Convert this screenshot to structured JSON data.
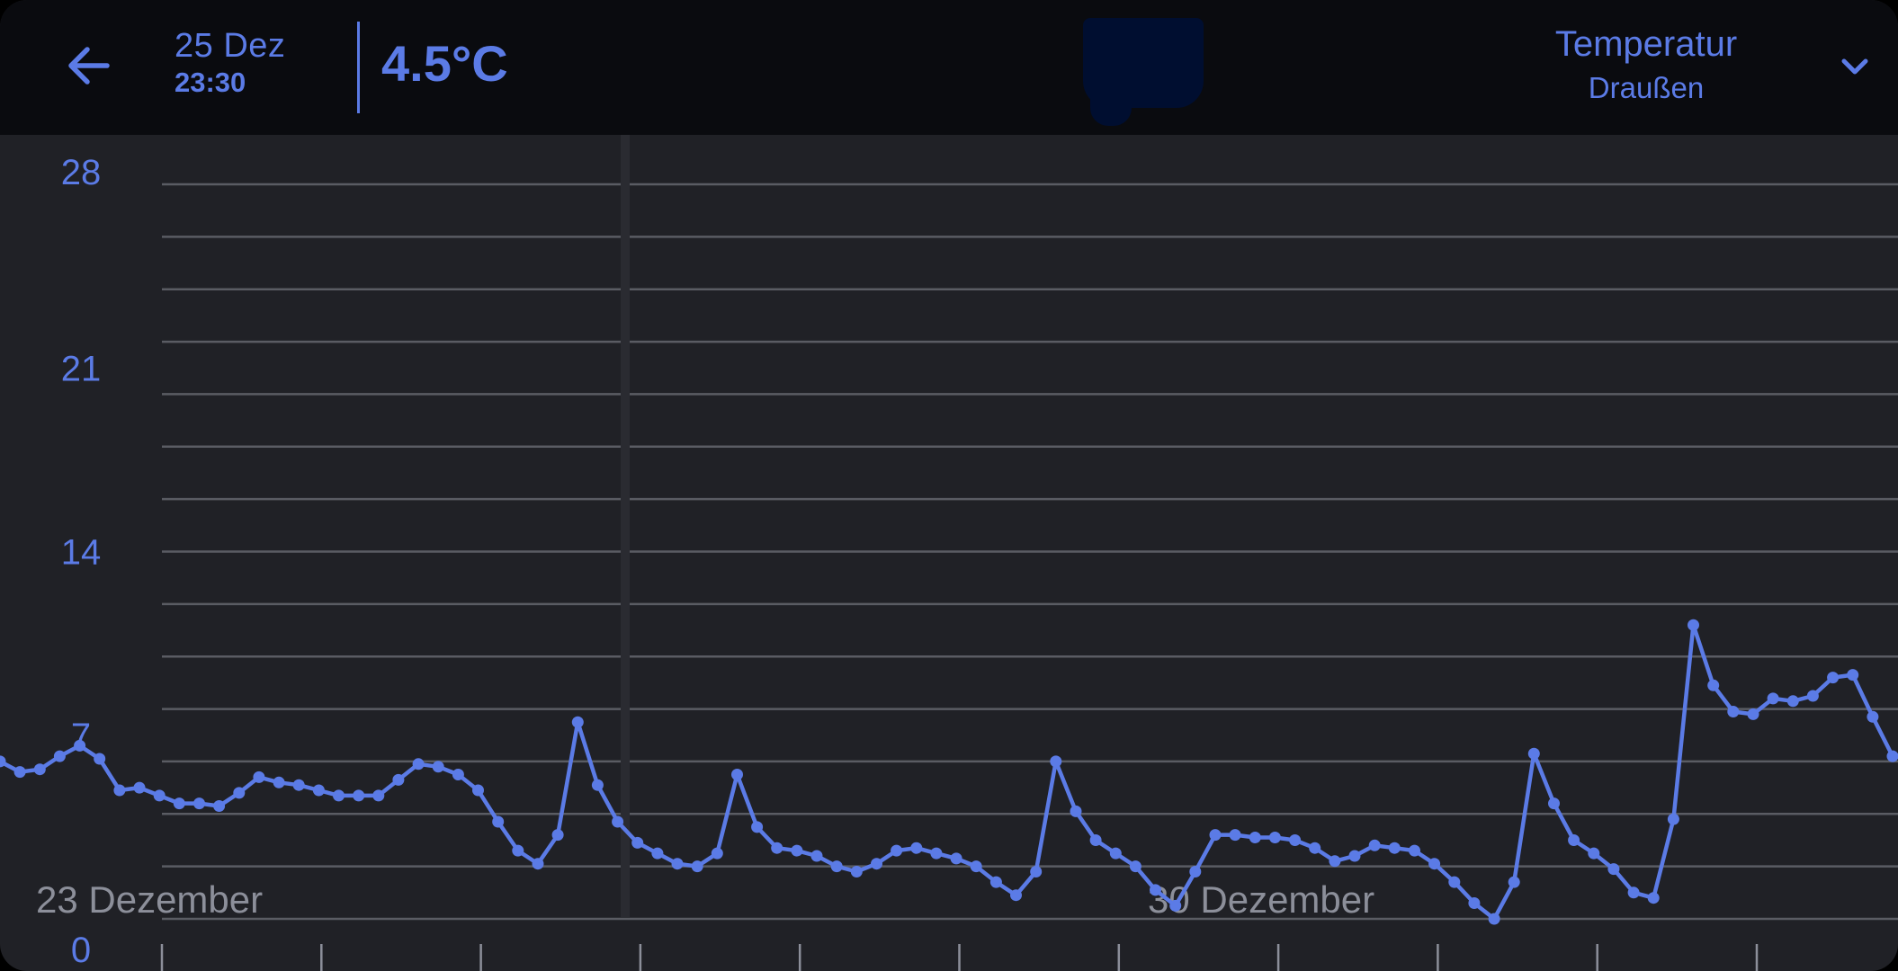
{
  "header": {
    "back_icon": "arrow-left-icon",
    "date_day": "25 Dez",
    "date_time": "23:30",
    "current_value": "4.5°C",
    "sensor_title": "Temperatur",
    "sensor_subtitle": "Draußen",
    "dropdown_icon": "chevron-down-icon"
  },
  "colors": {
    "accent": "#5b7be6",
    "background": "#202126",
    "header": "#0a0b0f",
    "grid": "#5a5c63",
    "axis_text": "#8c8f9a"
  },
  "chart_data": {
    "type": "line",
    "ylim": [
      0,
      28
    ],
    "y_ticks": [
      "28",
      "21",
      "14",
      "7",
      "0"
    ],
    "x_date_labels": [
      "23 Dezember",
      "30 Dezember"
    ],
    "grid": true,
    "highlighted_time": "25 Dez 23:30",
    "series": [
      {
        "values": [
          6.0,
          5.6,
          5.7,
          6.2,
          6.6,
          6.1,
          4.9,
          5.0,
          4.7,
          4.4,
          4.4,
          4.3,
          4.8,
          5.4,
          5.2,
          5.1,
          4.9,
          4.7,
          4.7,
          4.7,
          5.3,
          5.9,
          5.8,
          5.5,
          4.9,
          3.7,
          2.6,
          2.1,
          3.2,
          7.5,
          5.1,
          3.7,
          2.9,
          2.5,
          2.1,
          2.0,
          2.5,
          5.5,
          3.5,
          2.7,
          2.6,
          2.4,
          2.0,
          1.8,
          2.1,
          2.6,
          2.7,
          2.5,
          2.3,
          2.0,
          1.4,
          0.9,
          1.8,
          6.0,
          4.1,
          3.0,
          2.5,
          2.0,
          1.1,
          0.5,
          1.8,
          3.2,
          3.2,
          3.1,
          3.1,
          3.0,
          2.7,
          2.2,
          2.4,
          2.8,
          2.7,
          2.6,
          2.1,
          1.4,
          0.6,
          0.0,
          1.4,
          6.3,
          4.4,
          3.0,
          2.5,
          1.9,
          1.0,
          0.8,
          3.8,
          11.2,
          8.9,
          7.9,
          7.8,
          8.4,
          8.3,
          8.5,
          9.2,
          9.3,
          7.7,
          6.2
        ]
      }
    ]
  }
}
